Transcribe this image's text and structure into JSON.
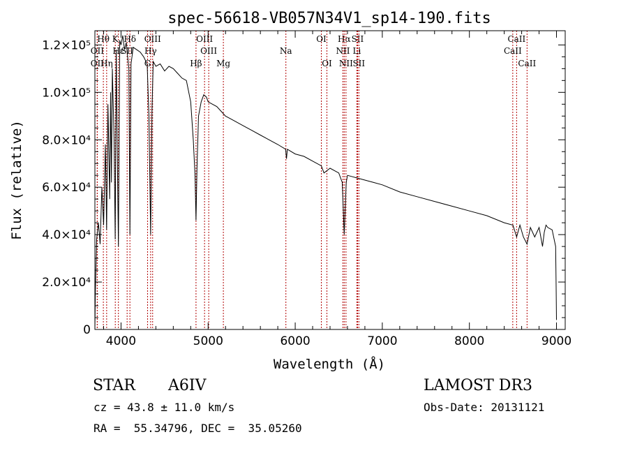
{
  "chart_data": {
    "type": "line",
    "title": "spec-56618-VB057N34V1_sp14-190.fits",
    "xlabel": "Wavelength (Å)",
    "ylabel": "Flux (relative)",
    "xlim": [
      3700,
      9100
    ],
    "ylim": [
      0,
      126000
    ],
    "x_ticks": [
      {
        "value": 4000,
        "label": "4000"
      },
      {
        "value": 5000,
        "label": "5000"
      },
      {
        "value": 6000,
        "label": "6000"
      },
      {
        "value": 7000,
        "label": "7000"
      },
      {
        "value": 8000,
        "label": "8000"
      },
      {
        "value": 9000,
        "label": "9000"
      }
    ],
    "y_ticks": [
      {
        "value": 0,
        "label": "0"
      },
      {
        "value": 20000,
        "label": "2.0×10⁴"
      },
      {
        "value": 40000,
        "label": "4.0×10⁴"
      },
      {
        "value": 60000,
        "label": "6.0×10⁴"
      },
      {
        "value": 80000,
        "label": "8.0×10⁴"
      },
      {
        "value": 100000,
        "label": "1.0×10⁵"
      },
      {
        "value": 120000,
        "label": "1.2×10⁵"
      }
    ],
    "spectrum": {
      "name": "flux",
      "x": [
        3700,
        3705,
        3720,
        3740,
        3760,
        3780,
        3800,
        3820,
        3835,
        3850,
        3870,
        3880,
        3890,
        3900,
        3920,
        3933,
        3945,
        3960,
        3970,
        3985,
        4000,
        4020,
        4040,
        4060,
        4090,
        4102,
        4115,
        4140,
        4180,
        4220,
        4260,
        4300,
        4320,
        4340,
        4355,
        4370,
        4400,
        4450,
        4500,
        4550,
        4600,
        4650,
        4700,
        4750,
        4800,
        4830,
        4850,
        4861,
        4872,
        4890,
        4920,
        4950,
        4980,
        5000,
        5050,
        5100,
        5150,
        5200,
        5250,
        5300,
        5400,
        5500,
        5600,
        5700,
        5800,
        5890,
        5900,
        5910,
        6000,
        6100,
        6200,
        6300,
        6330,
        6400,
        6500,
        6540,
        6563,
        6586,
        6600,
        6700,
        6800,
        6900,
        7000,
        7200,
        7400,
        7600,
        7800,
        8000,
        8200,
        8400,
        8500,
        8542,
        8580,
        8620,
        8662,
        8700,
        8750,
        8800,
        8840,
        8860,
        8880,
        8900,
        8950,
        8990,
        8996,
        9000
      ],
      "y": [
        0,
        15000,
        38000,
        45000,
        36000,
        60000,
        44000,
        78000,
        42000,
        95000,
        55000,
        100000,
        62000,
        110000,
        80000,
        38000,
        118000,
        65000,
        35000,
        122000,
        120000,
        124000,
        118000,
        121000,
        110000,
        40000,
        112000,
        119000,
        118000,
        117000,
        115000,
        112000,
        90000,
        40000,
        92000,
        113000,
        111000,
        112000,
        109000,
        111000,
        110000,
        108000,
        106000,
        105000,
        96000,
        80000,
        65000,
        46000,
        68000,
        90000,
        96000,
        99000,
        98000,
        96000,
        95000,
        94000,
        92000,
        90000,
        89000,
        88000,
        86000,
        84000,
        82000,
        80000,
        78000,
        76000,
        72000,
        76000,
        74000,
        73000,
        71000,
        69000,
        66000,
        68000,
        66000,
        62000,
        40000,
        62000,
        65000,
        64000,
        63000,
        62000,
        61000,
        58000,
        56000,
        54000,
        52000,
        50000,
        48000,
        45000,
        44000,
        39000,
        44000,
        39000,
        36000,
        43000,
        39000,
        43000,
        35000,
        41000,
        44000,
        43000,
        42000,
        35000,
        18000,
        4000
      ]
    },
    "lines": [
      {
        "name": "Hθ",
        "wave": 3797,
        "row": 0
      },
      {
        "name": "OII",
        "wave": 3727,
        "row": 1
      },
      {
        "name": "OII",
        "wave": 3727,
        "row": 2
      },
      {
        "name": "K",
        "wave": 3934,
        "row": 0
      },
      {
        "name": "Hδ",
        "wave": 4102,
        "row": 0
      },
      {
        "name": "OIII",
        "wave": 4363,
        "row": 0
      },
      {
        "name": "Hε",
        "wave": 3970,
        "row": 1
      },
      {
        "name": "SII",
        "wave": 4070,
        "row": 1
      },
      {
        "name": "Hγ",
        "wave": 4340,
        "row": 1
      },
      {
        "name": "Hη",
        "wave": 3835,
        "row": 2
      },
      {
        "name": "G",
        "wave": 4305,
        "row": 2
      },
      {
        "name": "Hβ",
        "wave": 4861,
        "row": 2
      },
      {
        "name": "OIII",
        "wave": 4959,
        "row": 0
      },
      {
        "name": "OIII",
        "wave": 5007,
        "row": 1
      },
      {
        "name": "Mg",
        "wave": 5175,
        "row": 2
      },
      {
        "name": "Na",
        "wave": 5893,
        "row": 1
      },
      {
        "name": "OI",
        "wave": 6300,
        "row": 0
      },
      {
        "name": "OI",
        "wave": 6364,
        "row": 2
      },
      {
        "name": "Hα",
        "wave": 6563,
        "row": 0
      },
      {
        "name": "NII",
        "wave": 6548,
        "row": 1
      },
      {
        "name": "NII",
        "wave": 6583,
        "row": 2
      },
      {
        "name": "SII",
        "wave": 6716,
        "row": 0
      },
      {
        "name": "Li",
        "wave": 6708,
        "row": 1
      },
      {
        "name": "SII",
        "wave": 6731,
        "row": 2
      },
      {
        "name": "CaII",
        "wave": 8542,
        "row": 0
      },
      {
        "name": "CaII",
        "wave": 8498,
        "row": 1
      },
      {
        "name": "CaII",
        "wave": 8662,
        "row": 2
      }
    ]
  },
  "info": {
    "object_class": "STAR",
    "subclass": "A6IV",
    "survey": "LAMOST DR3",
    "cz": "cz = 43.8 ± 11.0 km/s",
    "obs_date": "Obs-Date: 20131121",
    "coords": "RA =  55.34796, DEC =  35.05260"
  }
}
